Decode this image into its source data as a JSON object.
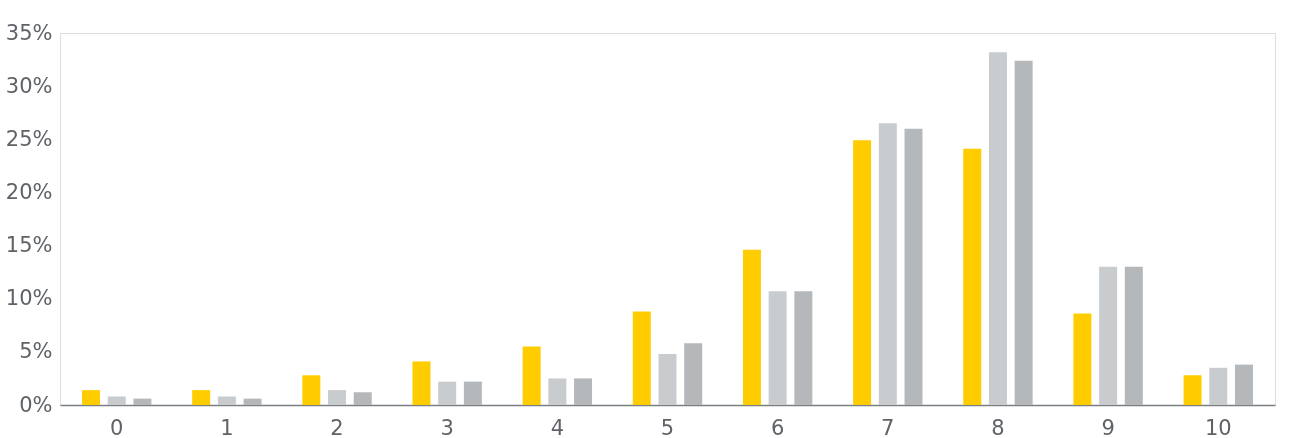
{
  "chart_data": {
    "type": "bar",
    "categories": [
      "0",
      "1",
      "2",
      "3",
      "4",
      "5",
      "6",
      "7",
      "8",
      "9",
      "10"
    ],
    "series": [
      {
        "color": "#ffcc00",
        "values": [
          1.4,
          1.4,
          2.8,
          4.1,
          5.5,
          8.8,
          14.6,
          24.9,
          24.1,
          8.6,
          2.8
        ]
      },
      {
        "color": "#c8cccf",
        "values": [
          0.8,
          0.8,
          1.4,
          2.2,
          2.5,
          4.8,
          10.7,
          26.5,
          33.2,
          13.0,
          3.5
        ]
      },
      {
        "color": "#b5b8bb",
        "values": [
          0.6,
          0.6,
          1.2,
          2.2,
          2.5,
          5.8,
          10.7,
          26.0,
          32.4,
          13.0,
          3.8
        ]
      }
    ],
    "ylim": [
      0,
      35
    ],
    "yticks": [
      {
        "value": 0,
        "label": "0%"
      },
      {
        "value": 5,
        "label": "5%"
      },
      {
        "value": 10,
        "label": "10%"
      },
      {
        "value": 15,
        "label": "15%"
      },
      {
        "value": 20,
        "label": "20%"
      },
      {
        "value": 25,
        "label": "25%"
      },
      {
        "value": 30,
        "label": "30%"
      },
      {
        "value": 35,
        "label": "35%"
      }
    ],
    "grid": false,
    "legend": false
  }
}
